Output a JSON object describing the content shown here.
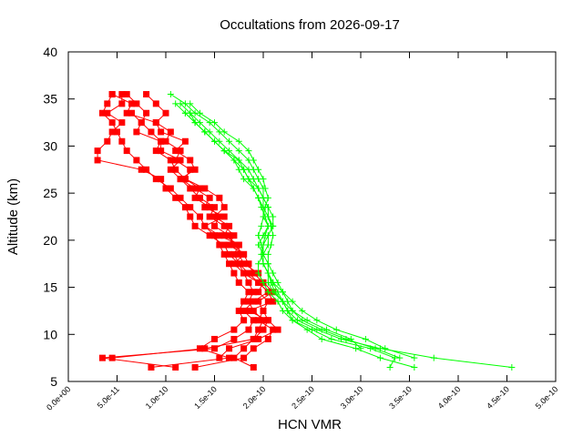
{
  "chart_data": {
    "type": "line",
    "title": "Occultations from 2026-09-17",
    "xlabel": "HCN VMR",
    "ylabel": "Altitude (km)",
    "xlim": [
      0,
      5e-10
    ],
    "ylim": [
      5,
      40
    ],
    "x_ticks": [
      {
        "value": 0,
        "label": "0.0e+00"
      },
      {
        "value": 5e-11,
        "label": "5.0e-11"
      },
      {
        "value": 1e-10,
        "label": "1.0e-10"
      },
      {
        "value": 1.5e-10,
        "label": "1.5e-10"
      },
      {
        "value": 2e-10,
        "label": "2.0e-10"
      },
      {
        "value": 2.5e-10,
        "label": "2.5e-10"
      },
      {
        "value": 3e-10,
        "label": "3.0e-10"
      },
      {
        "value": 3.5e-10,
        "label": "3.5e-10"
      },
      {
        "value": 4e-10,
        "label": "4.0e-10"
      },
      {
        "value": 4.5e-10,
        "label": "4.5e-10"
      },
      {
        "value": 5e-10,
        "label": "5.0e-10"
      }
    ],
    "y_ticks": [
      {
        "value": 5,
        "label": "5"
      },
      {
        "value": 10,
        "label": "10"
      },
      {
        "value": 15,
        "label": "15"
      },
      {
        "value": 20,
        "label": "20"
      },
      {
        "value": 25,
        "label": "25"
      },
      {
        "value": 30,
        "label": "30"
      },
      {
        "value": 35,
        "label": "35"
      },
      {
        "value": 40,
        "label": "40"
      }
    ],
    "grid": false,
    "legend": "none",
    "series": [
      {
        "color": "#ff0000",
        "marker": "square",
        "y": [
          6.5,
          7.5,
          8.5,
          9.5,
          10.5,
          11.5,
          12.5,
          13.5,
          14.5,
          15.5,
          16.5,
          17.5,
          18.5,
          19.5,
          20.5,
          21.5,
          22.5,
          23.5,
          24.5,
          25.5,
          26.5,
          27.5,
          28.5,
          29.5,
          30.5,
          31.5,
          32.5,
          33.5,
          34.5,
          35.5
        ],
        "x": [
          1.9e-10,
          1.7e-10,
          1.8e-10,
          1.9e-10,
          1.95e-10,
          2e-10,
          1.9e-10,
          1.85e-10,
          1.9e-10,
          1.85e-10,
          1.8e-10,
          1.75e-10,
          1.7e-10,
          1.75e-10,
          1.6e-10,
          1.65e-10,
          1.5e-10,
          1.6e-10,
          1.55e-10,
          1.4e-10,
          1.2e-10,
          1.25e-10,
          1.1e-10,
          1.15e-10,
          1e-10,
          1.05e-10,
          9e-11,
          1e-10,
          9e-11,
          8e-11
        ]
      },
      {
        "color": "#ff0000",
        "marker": "square",
        "y": [
          6.5,
          7.5,
          8.5,
          9.5,
          10.5,
          11.5,
          12.5,
          13.5,
          14.5,
          15.5,
          16.5,
          17.5,
          18.5,
          19.5,
          20.5,
          21.5,
          22.5,
          23.5,
          24.5,
          25.5,
          26.5,
          27.5,
          28.5,
          29.5,
          30.5,
          31.5,
          32.5,
          33.5,
          34.5,
          35.5
        ],
        "x": [
          1.3e-10,
          1.8e-10,
          1.9e-10,
          2.05e-10,
          2.1e-10,
          1.95e-10,
          2e-10,
          2.05e-10,
          1.95e-10,
          2e-10,
          1.9e-10,
          1.85e-10,
          1.8e-10,
          1.7e-10,
          1.65e-10,
          1.5e-10,
          1.55e-10,
          1.45e-10,
          1.3e-10,
          1.35e-10,
          1.2e-10,
          1.1e-10,
          1.05e-10,
          9e-11,
          9.5e-11,
          8.5e-11,
          7.5e-11,
          8e-11,
          7e-11,
          6e-11
        ]
      },
      {
        "color": "#ff0000",
        "marker": "square",
        "y": [
          6.5,
          7.5,
          8.5,
          9.5,
          10.5,
          11.5,
          12.5,
          13.5,
          14.5,
          15.5,
          16.5,
          17.5,
          18.5,
          19.5,
          20.5,
          21.5,
          22.5,
          23.5,
          24.5,
          25.5,
          26.5,
          27.5,
          28.5,
          29.5,
          30.5,
          31.5,
          32.5,
          33.5,
          34.5,
          35.5
        ],
        "x": [
          8.5e-11,
          1.65e-10,
          1.35e-10,
          1.5e-10,
          1.7e-10,
          1.8e-10,
          1.75e-10,
          1.8e-10,
          1.85e-10,
          1.75e-10,
          1.7e-10,
          1.65e-10,
          1.6e-10,
          1.55e-10,
          1.5e-10,
          1.4e-10,
          1.35e-10,
          1.25e-10,
          1.15e-10,
          1.05e-10,
          9e-11,
          8e-11,
          7e-11,
          6e-11,
          5.5e-11,
          5e-11,
          4.5e-11,
          3.5e-11,
          4e-11,
          4.5e-11
        ]
      },
      {
        "color": "#ff0000",
        "marker": "square",
        "y": [
          6.5,
          7.5,
          8.5,
          9.5,
          10.5,
          11.5,
          12.5,
          13.5,
          14.5,
          15.5,
          16.5,
          17.5,
          18.5,
          19.5,
          20.5,
          21.5,
          22.5,
          23.5,
          24.5,
          25.5,
          26.5,
          27.5,
          28.5,
          29.5,
          30.5,
          31.5,
          32.5,
          33.5,
          34.5,
          35.5
        ],
        "x": [
          1.1e-10,
          3.5e-11,
          1.5e-10,
          1.7e-10,
          1.85e-10,
          1.9e-10,
          1.8e-10,
          1.9e-10,
          2.05e-10,
          1.95e-10,
          1.85e-10,
          1.75e-10,
          1.65e-10,
          1.6e-10,
          1.45e-10,
          1.3e-10,
          1.25e-10,
          1.2e-10,
          1.1e-10,
          1e-10,
          9.5e-11,
          7.5e-11,
          3e-11,
          3e-11,
          4e-11,
          4.5e-11,
          5.5e-11,
          4e-11,
          5.5e-11,
          5.5e-11
        ]
      },
      {
        "color": "#ff0000",
        "marker": "square",
        "y": [
          7.5,
          8.5,
          9.5,
          10.5,
          11.5,
          12.5,
          13.5,
          14.5,
          15.5,
          16.5,
          17.5,
          18.5,
          19.5,
          20.5,
          21.5,
          22.5,
          23.5,
          24.5,
          25.5,
          26.5,
          27.5,
          28.5,
          29.5,
          30.5,
          31.5,
          32.5,
          33.5,
          34.5,
          35.5
        ],
        "x": [
          4.5e-11,
          1.4e-10,
          1.9e-10,
          2e-10,
          2.05e-10,
          1.85e-10,
          2.1e-10,
          2.05e-10,
          1.95e-10,
          1.8e-10,
          1.7e-10,
          1.8e-10,
          1.65e-10,
          1.7e-10,
          1.6e-10,
          1.45e-10,
          1.5e-10,
          1.35e-10,
          1.25e-10,
          1.15e-10,
          1.3e-10,
          1.25e-10,
          1.1e-10,
          1.2e-10,
          9.5e-11,
          9e-11,
          6e-11,
          6.5e-11,
          4.5e-11
        ]
      },
      {
        "color": "#ff0000",
        "marker": "square",
        "y": [
          7.5,
          8.5,
          9.5,
          10.5,
          11.5,
          12.5,
          13.5,
          14.5,
          15.5,
          16.5,
          17.5,
          18.5,
          19.5,
          20.5,
          21.5,
          22.5,
          23.5,
          24.5,
          25.5,
          26.5,
          27.5,
          28.5,
          29.5,
          30.5,
          31.5,
          32.5,
          33.5
        ],
        "x": [
          1.55e-10,
          1.65e-10,
          1.95e-10,
          2.15e-10,
          2.05e-10,
          2e-10,
          1.95e-10,
          2.1e-10,
          2e-10,
          1.95e-10,
          1.8e-10,
          1.75e-10,
          1.75e-10,
          1.55e-10,
          1.4e-10,
          1.6e-10,
          1.4e-10,
          1.45e-10,
          1.3e-10,
          1.15e-10,
          1.05e-10,
          1.15e-10,
          9.5e-11,
          9.5e-11,
          7e-11,
          7.5e-11,
          6.5e-11
        ]
      },
      {
        "color": "#00ff00",
        "marker": "plus",
        "y": [
          6.5,
          7.5,
          8.5,
          9.5,
          10.5,
          11.5,
          12.5,
          13.5,
          14.5,
          15.5,
          16.5,
          17.5,
          18.5,
          19.5,
          20.5,
          21.5,
          22.5,
          23.5,
          24.5,
          25.5,
          26.5,
          27.5,
          28.5,
          29.5,
          30.5,
          31.5,
          32.5,
          33.5,
          34.5,
          35.5
        ],
        "x": [
          4.55e-10,
          3.75e-10,
          3.2e-10,
          2.8e-10,
          2.55e-10,
          2.35e-10,
          2.25e-10,
          2.2e-10,
          2.12e-10,
          2.08e-10,
          2.05e-10,
          2.05e-10,
          2.05e-10,
          2.08e-10,
          2.1e-10,
          2.08e-10,
          2.05e-10,
          2.05e-10,
          2e-10,
          2e-10,
          1.95e-10,
          1.9e-10,
          1.85e-10,
          1.75e-10,
          1.65e-10,
          1.55e-10,
          1.45e-10,
          1.3e-10,
          1.2e-10,
          1.05e-10
        ]
      },
      {
        "color": "#00ff00",
        "marker": "plus",
        "y": [
          6.5,
          7.5,
          8.5,
          9.5,
          10.5,
          11.5,
          12.5,
          13.5,
          14.5,
          15.5,
          16.5,
          17.5,
          18.5,
          19.5,
          20.5,
          21.5,
          22.5,
          23.5,
          24.5,
          25.5,
          26.5,
          27.5,
          28.5,
          29.5,
          30.5,
          31.5,
          32.5,
          33.5,
          34.5
        ],
        "x": [
          3.55e-10,
          3.2e-10,
          2.95e-10,
          2.6e-10,
          2.45e-10,
          2.3e-10,
          2.2e-10,
          2.15e-10,
          2.05e-10,
          2e-10,
          1.95e-10,
          1.95e-10,
          2e-10,
          2e-10,
          2.05e-10,
          2.1e-10,
          2.1e-10,
          2.05e-10,
          2e-10,
          1.95e-10,
          1.9e-10,
          1.85e-10,
          1.75e-10,
          1.65e-10,
          1.55e-10,
          1.45e-10,
          1.35e-10,
          1.25e-10,
          1.15e-10
        ]
      },
      {
        "color": "#00ff00",
        "marker": "plus",
        "y": [
          6.5,
          7.5,
          8.5,
          9.5,
          10.5,
          11.5,
          12.5,
          13.5,
          14.5,
          15.5,
          16.5,
          17.5,
          18.5,
          19.5,
          20.5,
          21.5,
          22.5,
          23.5,
          24.5,
          25.5,
          26.5,
          27.5,
          28.5,
          29.5,
          30.5,
          31.5,
          32.5,
          33.5,
          34.5
        ],
        "x": [
          3.3e-10,
          3.35e-10,
          3.1e-10,
          2.7e-10,
          2.5e-10,
          2.3e-10,
          2.25e-10,
          2.2e-10,
          2.1e-10,
          2.05e-10,
          2.05e-10,
          2e-10,
          2e-10,
          1.95e-10,
          2e-10,
          2.05e-10,
          2e-10,
          2e-10,
          1.95e-10,
          1.9e-10,
          1.85e-10,
          1.8e-10,
          1.75e-10,
          1.6e-10,
          1.5e-10,
          1.4e-10,
          1.3e-10,
          1.2e-10,
          1.1e-10
        ]
      },
      {
        "color": "#00ff00",
        "marker": "plus",
        "y": [
          7.5,
          8.5,
          9.5,
          10.5,
          11.5,
          12.5,
          13.5,
          14.5,
          15.5,
          16.5,
          17.5,
          18.5,
          19.5,
          20.5,
          21.5,
          22.5,
          23.5,
          24.5,
          25.5,
          26.5,
          27.5,
          28.5,
          29.5,
          30.5,
          31.5,
          32.5,
          33.5
        ],
        "x": [
          3.4e-10,
          3.15e-10,
          2.85e-10,
          2.6e-10,
          2.4e-10,
          2.3e-10,
          2.2e-10,
          2.15e-10,
          2.1e-10,
          2.05e-10,
          2e-10,
          1.98e-10,
          2e-10,
          2.02e-10,
          2.05e-10,
          2.02e-10,
          1.98e-10,
          1.95e-10,
          1.9e-10,
          1.8e-10,
          1.75e-10,
          1.7e-10,
          1.6e-10,
          1.5e-10,
          1.4e-10,
          1.3e-10,
          1.25e-10
        ]
      },
      {
        "color": "#00ff00",
        "marker": "plus",
        "y": [
          7.5,
          8.5,
          9.5,
          10.5,
          11.5,
          12.5,
          13.5,
          14.5,
          15.5,
          16.5,
          17.5,
          18.5,
          19.5,
          20.5,
          21.5,
          22.5,
          23.5,
          24.5,
          25.5,
          26.5,
          27.5,
          28.5,
          29.5,
          30.5,
          31.5,
          32.5,
          33.5,
          34.5
        ],
        "x": [
          3.55e-10,
          3.25e-10,
          3.05e-10,
          2.75e-10,
          2.55e-10,
          2.4e-10,
          2.3e-10,
          2.2e-10,
          2.15e-10,
          2.1e-10,
          2.05e-10,
          2e-10,
          1.98e-10,
          1.95e-10,
          1.98e-10,
          2e-10,
          2.02e-10,
          2.05e-10,
          2.02e-10,
          2e-10,
          1.95e-10,
          1.9e-10,
          1.85e-10,
          1.75e-10,
          1.6e-10,
          1.5e-10,
          1.35e-10,
          1.25e-10
        ]
      },
      {
        "color": "#00ff00",
        "marker": "plus",
        "y": [
          8.5,
          9.5,
          10.5,
          11.5,
          12.5,
          13.5,
          14.5,
          15.5,
          16.5,
          17.5,
          18.5,
          19.5,
          20.5,
          21.5,
          22.5,
          23.5,
          24.5,
          25.5,
          26.5,
          27.5,
          28.5,
          29.5,
          30.5,
          31.5,
          32.5,
          33.5
        ],
        "x": [
          3e-10,
          2.9e-10,
          2.65e-10,
          2.45e-10,
          2.3e-10,
          2.25e-10,
          2.2e-10,
          2.1e-10,
          2.05e-10,
          2e-10,
          2e-10,
          2.05e-10,
          2.05e-10,
          2.1e-10,
          2.05e-10,
          2e-10,
          2e-10,
          1.95e-10,
          1.85e-10,
          1.8e-10,
          1.7e-10,
          1.6e-10,
          1.5e-10,
          1.4e-10,
          1.3e-10,
          1.2e-10
        ]
      }
    ]
  }
}
